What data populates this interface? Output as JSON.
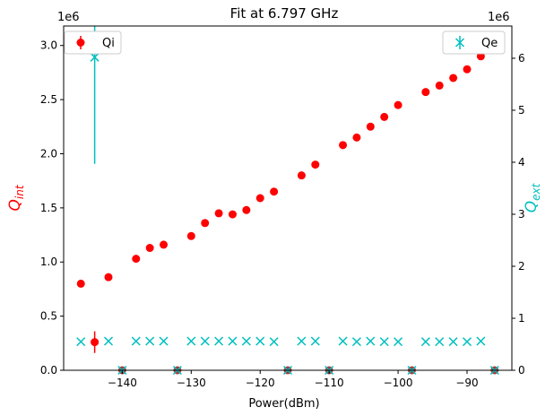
{
  "chart_data": {
    "type": "scatter",
    "title": "Fit at 6.797 GHz",
    "xlabel": "Power(dBm)",
    "ylabel_left": "Q_int",
    "ylabel_left_sub": "int",
    "ylabel_right": "Q_ext",
    "ylabel_right_sub": "ext",
    "offset_left": "1e6",
    "offset_right": "1e6",
    "xlim": [
      -148.5,
      -83.5
    ],
    "ylim_left": [
      0,
      3.18
    ],
    "ylim_right": [
      0,
      6.62
    ],
    "x_ticks": [
      -140,
      -130,
      -120,
      -110,
      -100,
      -90
    ],
    "x_tick_labels": [
      "−140",
      "−130",
      "−120",
      "−110",
      "−100",
      "−90"
    ],
    "yleft_ticks": [
      0,
      0.5,
      1.0,
      1.5,
      2.0,
      2.5,
      3.0
    ],
    "yleft_tick_labels": [
      "0.0",
      "0.5",
      "1.0",
      "1.5",
      "2.0",
      "2.5",
      "3.0"
    ],
    "yright_ticks": [
      0,
      1,
      2,
      3,
      4,
      5,
      6
    ],
    "yright_tick_labels": [
      "0",
      "1",
      "2",
      "3",
      "4",
      "5",
      "6"
    ],
    "colors": {
      "qi": "#ff0000",
      "qe": "#00bfbf",
      "zero_marker": "#b03a3a"
    },
    "legend_left": {
      "label": "Qi",
      "position": "upper-left"
    },
    "legend_right": {
      "label": "Qe",
      "position": "upper-right"
    },
    "series": [
      {
        "name": "Qi",
        "axis": "left",
        "marker": "circle",
        "points": [
          {
            "x": -146,
            "y": 0.8,
            "err": 0.02
          },
          {
            "x": -144,
            "y": 0.26,
            "err": 0.1
          },
          {
            "x": -142,
            "y": 0.86,
            "err": 0.01
          },
          {
            "x": -140,
            "y": 0.0,
            "err": 0
          },
          {
            "x": -138,
            "y": 1.03,
            "err": 0.01
          },
          {
            "x": -136,
            "y": 1.13,
            "err": 0.01
          },
          {
            "x": -134,
            "y": 1.16,
            "err": 0.01
          },
          {
            "x": -132,
            "y": 0.0,
            "err": 0
          },
          {
            "x": -130,
            "y": 1.24,
            "err": 0.01
          },
          {
            "x": -128,
            "y": 1.36,
            "err": 0.01
          },
          {
            "x": -126,
            "y": 1.45,
            "err": 0.01
          },
          {
            "x": -124,
            "y": 1.44,
            "err": 0.01
          },
          {
            "x": -122,
            "y": 1.48,
            "err": 0.01
          },
          {
            "x": -120,
            "y": 1.59,
            "err": 0.01
          },
          {
            "x": -118,
            "y": 1.65,
            "err": 0.01
          },
          {
            "x": -116,
            "y": 0.0,
            "err": 0
          },
          {
            "x": -114,
            "y": 1.8,
            "err": 0.01
          },
          {
            "x": -112,
            "y": 1.9,
            "err": 0.01
          },
          {
            "x": -110,
            "y": 0.0,
            "err": 0
          },
          {
            "x": -108,
            "y": 2.08,
            "err": 0.01
          },
          {
            "x": -106,
            "y": 2.15,
            "err": 0.01
          },
          {
            "x": -104,
            "y": 2.25,
            "err": 0.01
          },
          {
            "x": -102,
            "y": 2.34,
            "err": 0.01
          },
          {
            "x": -100,
            "y": 2.45,
            "err": 0.01
          },
          {
            "x": -98,
            "y": 0.0,
            "err": 0
          },
          {
            "x": -96,
            "y": 2.57,
            "err": 0.01
          },
          {
            "x": -94,
            "y": 2.63,
            "err": 0.01
          },
          {
            "x": -92,
            "y": 2.7,
            "err": 0.01
          },
          {
            "x": -90,
            "y": 2.78,
            "err": 0.01
          },
          {
            "x": -88,
            "y": 2.9,
            "err": 0.01
          },
          {
            "x": -86,
            "y": 0.0,
            "err": 0
          }
        ]
      },
      {
        "name": "Qe",
        "axis": "right",
        "marker": "x",
        "points": [
          {
            "x": -146,
            "y": 0.55,
            "err": 0
          },
          {
            "x": -144,
            "y": 6.02,
            "err": 2.05
          },
          {
            "x": -142,
            "y": 0.56,
            "err": 0
          },
          {
            "x": -140,
            "y": 0.0,
            "err": 0
          },
          {
            "x": -138,
            "y": 0.56,
            "err": 0
          },
          {
            "x": -136,
            "y": 0.56,
            "err": 0
          },
          {
            "x": -134,
            "y": 0.56,
            "err": 0
          },
          {
            "x": -132,
            "y": 0.0,
            "err": 0
          },
          {
            "x": -130,
            "y": 0.56,
            "err": 0
          },
          {
            "x": -128,
            "y": 0.56,
            "err": 0
          },
          {
            "x": -126,
            "y": 0.56,
            "err": 0
          },
          {
            "x": -124,
            "y": 0.56,
            "err": 0
          },
          {
            "x": -122,
            "y": 0.56,
            "err": 0
          },
          {
            "x": -120,
            "y": 0.56,
            "err": 0
          },
          {
            "x": -118,
            "y": 0.55,
            "err": 0
          },
          {
            "x": -116,
            "y": 0.0,
            "err": 0
          },
          {
            "x": -114,
            "y": 0.56,
            "err": 0
          },
          {
            "x": -112,
            "y": 0.56,
            "err": 0
          },
          {
            "x": -110,
            "y": 0.0,
            "err": 0
          },
          {
            "x": -108,
            "y": 0.56,
            "err": 0
          },
          {
            "x": -106,
            "y": 0.55,
            "err": 0
          },
          {
            "x": -104,
            "y": 0.56,
            "err": 0
          },
          {
            "x": -102,
            "y": 0.55,
            "err": 0
          },
          {
            "x": -100,
            "y": 0.55,
            "err": 0
          },
          {
            "x": -98,
            "y": 0.0,
            "err": 0
          },
          {
            "x": -96,
            "y": 0.55,
            "err": 0
          },
          {
            "x": -94,
            "y": 0.55,
            "err": 0
          },
          {
            "x": -92,
            "y": 0.55,
            "err": 0
          },
          {
            "x": -90,
            "y": 0.55,
            "err": 0
          },
          {
            "x": -88,
            "y": 0.56,
            "err": 0
          },
          {
            "x": -86,
            "y": 0.0,
            "err": 0
          }
        ]
      }
    ]
  }
}
